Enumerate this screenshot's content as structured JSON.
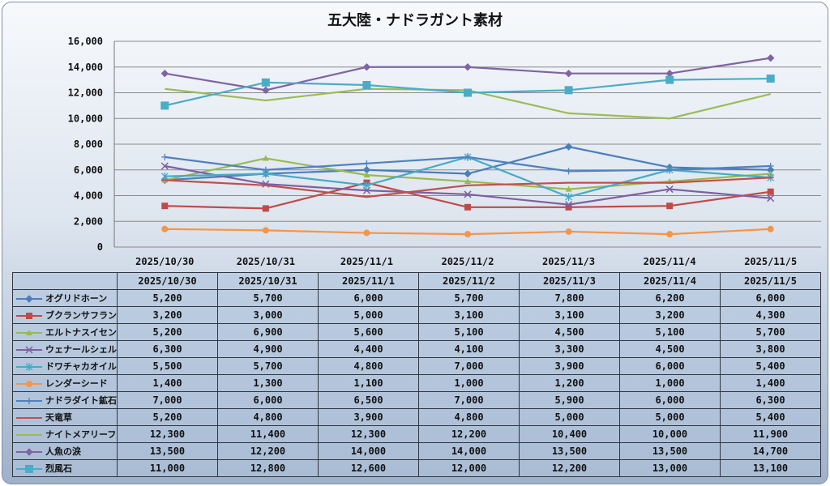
{
  "chart_data": {
    "type": "line",
    "title": "五大陸・ナドラガント素材",
    "categories": [
      "2025/10/30",
      "2025/10/31",
      "2025/11/1",
      "2025/11/2",
      "2025/11/3",
      "2025/11/4",
      "2025/11/5"
    ],
    "ylim": [
      0,
      16000
    ],
    "yticks": [
      "0",
      "2,000",
      "4,000",
      "6,000",
      "8,000",
      "10,000",
      "12,000",
      "14,000",
      "16,000"
    ],
    "grid": true,
    "legend": "data-table",
    "series": [
      {
        "name": "オグリドホーン",
        "color": "#4a7ebb",
        "marker": "diamond",
        "values": [
          5200,
          5700,
          6000,
          5700,
          7800,
          6200,
          6000
        ],
        "labels": [
          "5,200",
          "5,700",
          "6,000",
          "5,700",
          "7,800",
          "6,200",
          "6,000"
        ]
      },
      {
        "name": "ブクランサフラン",
        "color": "#be4b48",
        "marker": "square",
        "values": [
          3200,
          3000,
          5000,
          3100,
          3100,
          3200,
          4300
        ],
        "labels": [
          "3,200",
          "3,000",
          "5,000",
          "3,100",
          "3,100",
          "3,200",
          "4,300"
        ]
      },
      {
        "name": "エルトナスイセン",
        "color": "#98b954",
        "marker": "triangle",
        "values": [
          5200,
          6900,
          5600,
          5100,
          4500,
          5100,
          5700
        ],
        "labels": [
          "5,200",
          "6,900",
          "5,600",
          "5,100",
          "4,500",
          "5,100",
          "5,700"
        ]
      },
      {
        "name": "ウェナールシェル",
        "color": "#7d60a0",
        "marker": "x",
        "values": [
          6300,
          4900,
          4400,
          4100,
          3300,
          4500,
          3800
        ],
        "labels": [
          "6,300",
          "4,900",
          "4,400",
          "4,100",
          "3,300",
          "4,500",
          "3,800"
        ]
      },
      {
        "name": "ドワチャカオイル",
        "color": "#46aac5",
        "marker": "star",
        "values": [
          5500,
          5700,
          4800,
          7000,
          3900,
          6000,
          5400
        ],
        "labels": [
          "5,500",
          "5,700",
          "4,800",
          "7,000",
          "3,900",
          "6,000",
          "5,400"
        ]
      },
      {
        "name": "レンダーシード",
        "color": "#f69546",
        "marker": "circle",
        "values": [
          1400,
          1300,
          1100,
          1000,
          1200,
          1000,
          1400
        ],
        "labels": [
          "1,400",
          "1,300",
          "1,100",
          "1,000",
          "1,200",
          "1,000",
          "1,400"
        ]
      },
      {
        "name": "ナドラダイト鉱石",
        "color": "#4f81bd",
        "marker": "plus",
        "values": [
          7000,
          6000,
          6500,
          7000,
          5900,
          6000,
          6300
        ],
        "labels": [
          "7,000",
          "6,000",
          "6,500",
          "7,000",
          "5,900",
          "6,000",
          "6,300"
        ]
      },
      {
        "name": "天竜草",
        "color": "#c0504d",
        "marker": "dash",
        "values": [
          5200,
          4800,
          3900,
          4800,
          5000,
          5000,
          5400
        ],
        "labels": [
          "5,200",
          "4,800",
          "3,900",
          "4,800",
          "5,000",
          "5,000",
          "5,400"
        ]
      },
      {
        "name": "ナイトメアリーフ",
        "color": "#9bbb59",
        "marker": "none",
        "values": [
          12300,
          11400,
          12300,
          12200,
          10400,
          10000,
          11900
        ],
        "labels": [
          "12,300",
          "11,400",
          "12,300",
          "12,200",
          "10,400",
          "10,000",
          "11,900"
        ]
      },
      {
        "name": "人魚の涙",
        "color": "#8064a2",
        "marker": "diamond",
        "values": [
          13500,
          12200,
          14000,
          14000,
          13500,
          13500,
          14700
        ],
        "labels": [
          "13,500",
          "12,200",
          "14,000",
          "14,000",
          "13,500",
          "13,500",
          "14,700"
        ]
      },
      {
        "name": "烈風石",
        "color": "#4bacc6",
        "marker": "bigsquare",
        "values": [
          11000,
          12800,
          12600,
          12000,
          12200,
          13000,
          13100
        ],
        "labels": [
          "11,000",
          "12,800",
          "12,600",
          "12,000",
          "12,200",
          "13,000",
          "13,100"
        ]
      }
    ]
  }
}
